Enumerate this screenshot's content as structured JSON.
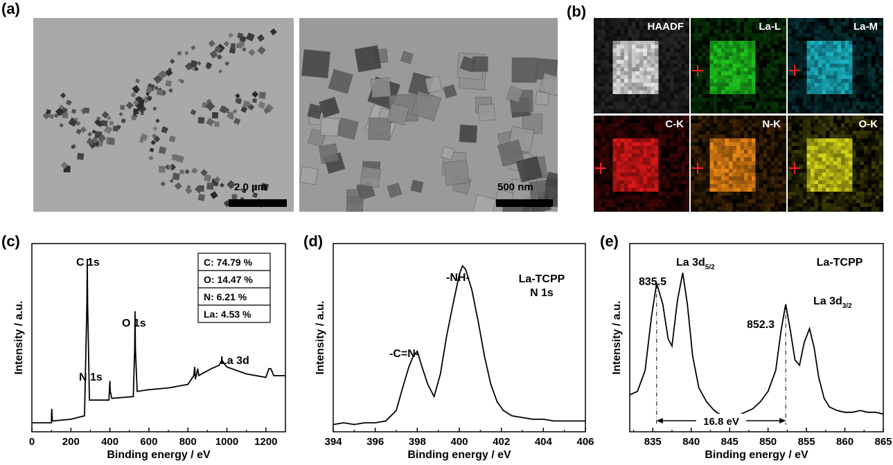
{
  "panels": {
    "a": "(a)",
    "b": "(b)",
    "c": "(c)",
    "d": "(d)",
    "e": "(e)"
  },
  "tem": {
    "left_scale": "2.0 µm",
    "right_scale": "500 nm"
  },
  "eds_maps": [
    {
      "label": "HAADF",
      "color": "#e8e8e8"
    },
    {
      "label": "La-L",
      "color": "#1fc81f"
    },
    {
      "label": "La-M",
      "color": "#1ab8c8"
    },
    {
      "label": "C-K",
      "color": "#e01818"
    },
    {
      "label": "N-K",
      "color": "#f08a14"
    },
    {
      "label": "O-K",
      "color": "#d8d818"
    }
  ],
  "chart_data": [
    {
      "type": "line",
      "xlabel": "Binding energy / eV",
      "ylabel": "Intensity / a.u.",
      "xlim": [
        0,
        1300
      ],
      "xticks": [
        0,
        200,
        400,
        600,
        800,
        1000,
        1200
      ],
      "annotations": [
        "C 1s",
        "N 1s",
        "O 1s",
        "La 3d"
      ],
      "table": [
        "C: 74.79 %",
        "O: 14.47 %",
        "N: 6.21 %",
        "La: 4.53 %"
      ],
      "series": [
        {
          "x": [
            0,
            100,
            102,
            105,
            200,
            270,
            282,
            284,
            286,
            295,
            395,
            398,
            400,
            402,
            410,
            520,
            527,
            529,
            531,
            540,
            600,
            700,
            800,
            830,
            835,
            838,
            845,
            850,
            853,
            856,
            870,
            920,
            960,
            975,
            985,
            1000,
            1100,
            1200,
            1215,
            1225,
            1240,
            1300
          ],
          "y": [
            2,
            2,
            10,
            3,
            4,
            6,
            70,
            96,
            70,
            15,
            15,
            22,
            26,
            20,
            16,
            17,
            44,
            66,
            44,
            20,
            21,
            22,
            24,
            29,
            34,
            27,
            30,
            33,
            31,
            29,
            30,
            33,
            35,
            38,
            36,
            34,
            30,
            28,
            33,
            33,
            29,
            29
          ]
        }
      ]
    },
    {
      "type": "line",
      "xlabel": "Binding energy / eV",
      "ylabel": "Intensity / a.u.",
      "xlim": [
        394,
        406
      ],
      "xticks": [
        394,
        396,
        398,
        400,
        402,
        404,
        406
      ],
      "annotations": [
        "-NH-",
        "-C=N-",
        "La-TCPP",
        "N 1s"
      ],
      "series": [
        {
          "x": [
            394,
            394.5,
            395,
            395.5,
            396,
            396.5,
            397,
            397.3,
            397.6,
            397.8,
            398.0,
            398.2,
            398.5,
            398.8,
            399.1,
            399.4,
            399.7,
            400.0,
            400.15,
            400.3,
            400.6,
            400.9,
            401.2,
            401.5,
            401.8,
            402.1,
            402.5,
            403,
            403.5,
            404,
            404.5,
            405,
            405.5,
            406
          ],
          "y": [
            1,
            2,
            1,
            2,
            2,
            3,
            9,
            22,
            34,
            40,
            43,
            35,
            24,
            17,
            30,
            52,
            70,
            87,
            92,
            90,
            78,
            60,
            40,
            24,
            14,
            9,
            6,
            5,
            4,
            4,
            3,
            3,
            3,
            3
          ]
        }
      ]
    },
    {
      "type": "line",
      "xlabel": "Binding energy / eV",
      "ylabel": "Intensity / a.u.",
      "xlim": [
        832,
        865
      ],
      "xticks": [
        835,
        840,
        845,
        850,
        855,
        860,
        865
      ],
      "annotations": [
        "835.5",
        "La 3d5/2",
        "La-TCPP",
        "852.3",
        "La 3d3/2",
        "16.8 eV"
      ],
      "markers": [
        835.5,
        852.3
      ],
      "series": [
        {
          "x": [
            832,
            833,
            834,
            834.8,
            835.5,
            836.3,
            837,
            837.5,
            838.2,
            838.9,
            839.5,
            840.2,
            841,
            842,
            843,
            844,
            845,
            846,
            847,
            848,
            849,
            850,
            851,
            851.7,
            852.3,
            852.9,
            853.5,
            854.1,
            854.7,
            855.4,
            856,
            856.6,
            857.3,
            858,
            859,
            860,
            861,
            862,
            863,
            864,
            865
          ],
          "y": [
            18,
            20,
            32,
            62,
            82,
            70,
            50,
            46,
            72,
            88,
            70,
            40,
            22,
            14,
            9,
            6,
            5,
            6,
            8,
            10,
            14,
            20,
            32,
            55,
            70,
            55,
            38,
            35,
            48,
            56,
            45,
            28,
            16,
            11,
            9,
            8,
            8,
            9,
            8,
            8,
            7
          ]
        }
      ]
    }
  ]
}
